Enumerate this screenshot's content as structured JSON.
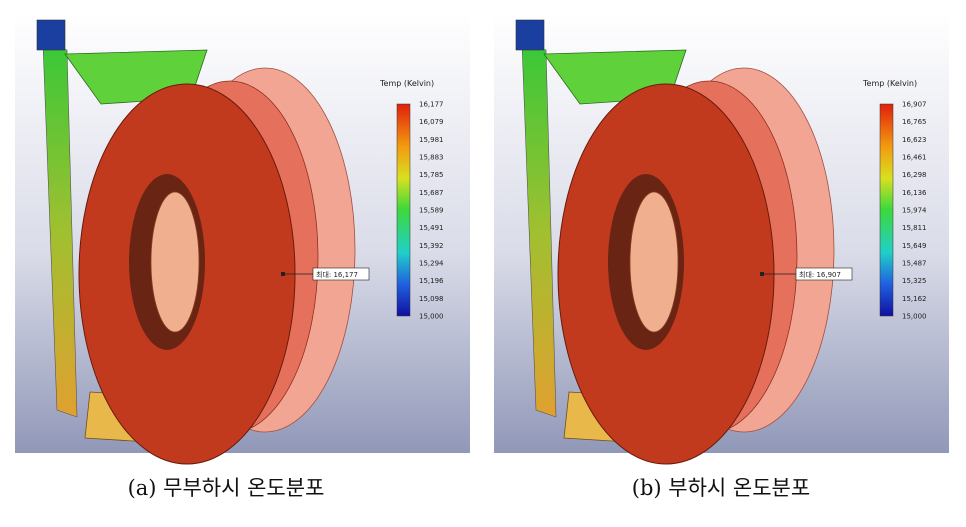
{
  "panels": [
    {
      "legend_title": "Temp (Kelvin)",
      "legend_ticks": [
        "16,177",
        "16,079",
        "15,981",
        "15,883",
        "15,785",
        "15,687",
        "15,589",
        "15,491",
        "15,392",
        "15,294",
        "15,196",
        "15,098",
        "15,000"
      ],
      "max_label": "최대: 16,177",
      "caption": "(a)  무부하시  온도분포"
    },
    {
      "legend_title": "Temp (Kelvin)",
      "legend_ticks": [
        "16,907",
        "16,765",
        "16,623",
        "16,461",
        "16,298",
        "16,136",
        "15,974",
        "15,811",
        "15,649",
        "15,487",
        "15,325",
        "15,162",
        "15,000"
      ],
      "max_label": "최대: 16,907",
      "caption": "(b)  부하시  온도분포"
    }
  ]
}
